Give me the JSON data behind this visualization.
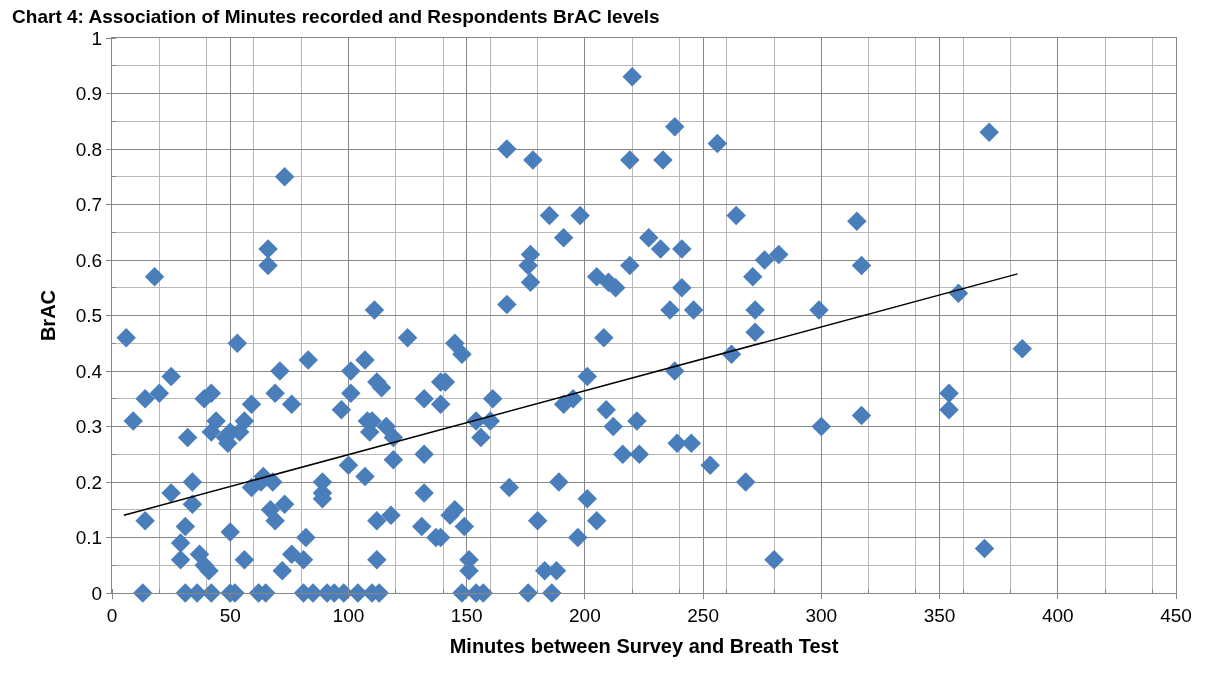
{
  "chart_data": {
    "type": "scatter",
    "title": "Chart 4: Association of Minutes recorded and Respondents BrAC levels",
    "xlabel": "Minutes between Survey and Breath Test",
    "ylabel": "BrAC",
    "xlim": [
      0,
      450
    ],
    "xticks": [
      0,
      50,
      100,
      150,
      200,
      250,
      300,
      350,
      400,
      450
    ],
    "ylim": [
      0,
      1
    ],
    "yticks": [
      0,
      0.1,
      0.2,
      0.3,
      0.4,
      0.5,
      0.6,
      0.7,
      0.8,
      0.9,
      1
    ],
    "grid": true,
    "series": [
      {
        "marker": "diamond",
        "color": "#4a7ebb",
        "x": [
          6,
          9,
          14,
          14,
          13,
          18,
          20,
          25,
          25,
          29,
          29,
          31,
          32,
          34,
          34,
          31,
          36,
          39,
          42,
          37,
          39,
          41,
          42,
          42,
          44,
          48,
          49,
          50,
          50,
          50,
          52,
          53,
          54,
          56,
          56,
          59,
          59,
          63,
          64,
          62,
          65,
          66,
          66,
          68,
          67,
          69,
          69,
          71,
          72,
          73,
          73,
          76,
          76,
          81,
          82,
          83,
          81,
          85,
          89,
          89,
          89,
          91,
          94,
          97,
          98,
          100,
          101,
          101,
          104,
          107,
          107,
          108,
          109,
          110,
          111,
          112,
          114,
          112,
          112,
          110,
          113,
          116,
          118,
          119,
          119,
          125,
          132,
          132,
          132,
          131,
          139,
          137,
          139,
          139,
          141,
          145,
          148,
          143,
          145,
          149,
          148,
          151,
          151,
          154,
          156,
          154,
          157,
          160,
          161,
          167,
          167,
          168,
          176,
          177,
          177,
          178,
          180,
          176,
          183,
          185,
          186,
          188,
          189,
          191,
          191,
          195,
          197,
          198,
          201,
          201,
          205,
          205,
          208,
          209,
          210,
          212,
          213,
          216,
          219,
          219,
          220,
          222,
          223,
          227,
          232,
          233,
          236,
          238,
          238,
          239,
          241,
          241,
          246,
          245,
          253,
          256,
          262,
          264,
          268,
          271,
          272,
          272,
          276,
          282,
          280,
          299,
          300,
          315,
          317,
          317,
          354,
          354,
          358,
          369,
          371,
          385
        ],
        "values": [
          0.46,
          0.31,
          0.35,
          0.13,
          0,
          0.57,
          0.36,
          0.39,
          0.18,
          0.09,
          0.06,
          0.12,
          0.28,
          0.2,
          0.16,
          0,
          0,
          0.35,
          0.36,
          0.07,
          0.05,
          0.04,
          0,
          0.29,
          0.31,
          0.28,
          0.27,
          0.29,
          0.11,
          0,
          0,
          0.45,
          0.29,
          0.31,
          0.06,
          0.34,
          0.19,
          0.2,
          0.21,
          0,
          0,
          0.62,
          0.59,
          0.2,
          0.15,
          0.13,
          0.36,
          0.4,
          0.04,
          0.16,
          0.75,
          0.34,
          0.07,
          0.06,
          0.1,
          0.42,
          0,
          0,
          0.2,
          0.17,
          0.18,
          0,
          0,
          0.33,
          0,
          0.23,
          0.4,
          0.36,
          0,
          0.21,
          0.42,
          0.31,
          0.29,
          0.31,
          0.51,
          0.38,
          0.37,
          0.13,
          0.06,
          0,
          0,
          0.3,
          0.14,
          0.24,
          0.28,
          0.46,
          0.35,
          0.25,
          0.18,
          0.12,
          0.34,
          0.1,
          0.1,
          0.38,
          0.38,
          0.45,
          0.43,
          0.14,
          0.15,
          0.12,
          0,
          0.06,
          0.04,
          0.31,
          0.28,
          0,
          0,
          0.31,
          0.35,
          0.8,
          0.52,
          0.19,
          0.59,
          0.61,
          0.56,
          0.78,
          0.13,
          0,
          0.04,
          0.68,
          0,
          0.04,
          0.2,
          0.64,
          0.34,
          0.35,
          0.1,
          0.68,
          0.39,
          0.17,
          0.57,
          0.13,
          0.46,
          0.33,
          0.56,
          0.3,
          0.55,
          0.25,
          0.59,
          0.78,
          0.93,
          0.31,
          0.25,
          0.64,
          0.62,
          0.78,
          0.51,
          0.84,
          0.4,
          0.27,
          0.62,
          0.55,
          0.51,
          0.27,
          0.23,
          0.81,
          0.43,
          0.68,
          0.2,
          0.57,
          0.51,
          0.47,
          0.6,
          0.61,
          0.06,
          0.51,
          0.3,
          0.67,
          0.59,
          0.32,
          0.33,
          0.36,
          0.54,
          0.08,
          0.83,
          0.44
        ]
      },
      {
        "type": "line",
        "color": "#000000",
        "x": [
          5,
          383
        ],
        "values": [
          0.14,
          0.575
        ]
      }
    ]
  }
}
